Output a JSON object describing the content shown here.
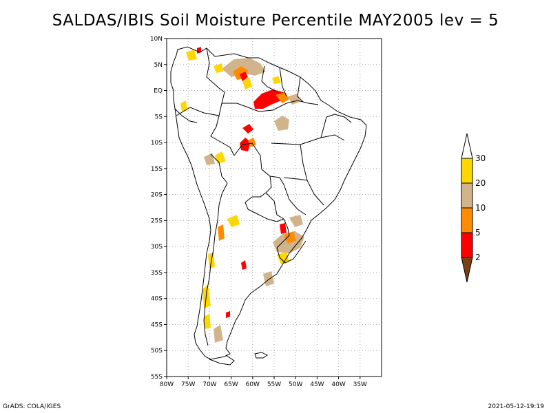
{
  "title": "SALDAS/IBIS Soil Moisture Percentile MAY2005 lev = 5",
  "map": {
    "lon_range": [
      -80,
      -30
    ],
    "lat_range": [
      -55,
      10
    ],
    "lon_ticks": [
      {
        "value": -80,
        "label": "80W"
      },
      {
        "value": -75,
        "label": "75W"
      },
      {
        "value": -70,
        "label": "70W"
      },
      {
        "value": -65,
        "label": "65W"
      },
      {
        "value": -60,
        "label": "60W"
      },
      {
        "value": -55,
        "label": "55W"
      },
      {
        "value": -50,
        "label": "50W"
      },
      {
        "value": -45,
        "label": "45W"
      },
      {
        "value": -40,
        "label": "40W"
      },
      {
        "value": -35,
        "label": "35W"
      }
    ],
    "lat_ticks": [
      {
        "value": 10,
        "label": "10N"
      },
      {
        "value": 5,
        "label": "5N"
      },
      {
        "value": 0,
        "label": "EQ"
      },
      {
        "value": -5,
        "label": "5S"
      },
      {
        "value": -10,
        "label": "10S"
      },
      {
        "value": -15,
        "label": "15S"
      },
      {
        "value": -20,
        "label": "20S"
      },
      {
        "value": -25,
        "label": "25S"
      },
      {
        "value": -30,
        "label": "30S"
      },
      {
        "value": -35,
        "label": "35S"
      },
      {
        "value": -40,
        "label": "40S"
      },
      {
        "value": -45,
        "label": "45S"
      },
      {
        "value": -50,
        "label": "50S"
      },
      {
        "value": -55,
        "label": "55S"
      }
    ]
  },
  "colorbar": {
    "bins": [
      {
        "color": "#7b3f14",
        "range": "<2"
      },
      {
        "color": "#ff0000",
        "range": "2-5"
      },
      {
        "color": "#ff8c00",
        "range": "5-10"
      },
      {
        "color": "#d2b48c",
        "range": "10-20"
      },
      {
        "color": "#ffd700",
        "range": "20-30"
      },
      {
        "color": "#ffffff",
        "range": ">30"
      }
    ],
    "labels": [
      "2",
      "5",
      "10",
      "20",
      "30"
    ]
  },
  "footer": {
    "left": "GrADS: COLA/IGES",
    "right": "2021-05-12-19:19"
  },
  "colors": {
    "dark_brown": "#7b3f14",
    "red": "#ff0000",
    "orange": "#ff8c00",
    "tan": "#d2b48c",
    "yellow": "#ffd700"
  }
}
